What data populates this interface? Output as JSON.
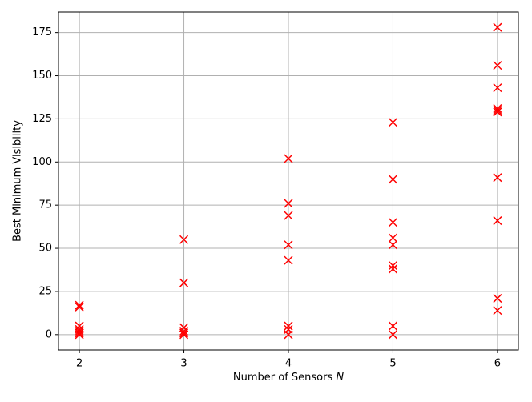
{
  "chart_data": {
    "type": "scatter",
    "xlabel": "Number of Sensors N",
    "ylabel": "Best Minimum Visibility",
    "series": [
      {
        "color": "#ff0000",
        "x": [
          2,
          2,
          2,
          2,
          2,
          2,
          2,
          3,
          3,
          3,
          3,
          3,
          3,
          4,
          4,
          4,
          4,
          4,
          4,
          4,
          4,
          5,
          5,
          5,
          5,
          5,
          5,
          5,
          5,
          5,
          6,
          6,
          6,
          6,
          6,
          6,
          6,
          6,
          6,
          6
        ],
        "values": [
          17,
          16,
          5,
          3,
          2,
          1,
          0,
          55,
          30,
          4,
          2,
          1,
          0,
          102,
          76,
          69,
          52,
          43,
          5,
          3,
          0,
          123,
          90,
          65,
          56,
          52,
          40,
          38,
          5,
          0,
          178,
          156,
          143,
          131,
          130,
          129,
          91,
          66,
          21,
          14
        ]
      }
    ],
    "xlim": [
      1.8,
      6.2
    ],
    "xticks": [
      2,
      3,
      4,
      5,
      6
    ],
    "ylim": [
      -8.9,
      186.9
    ],
    "yticks": [
      0,
      25,
      50,
      75,
      100,
      125,
      150,
      175
    ],
    "grid": true,
    "marker": "x"
  }
}
